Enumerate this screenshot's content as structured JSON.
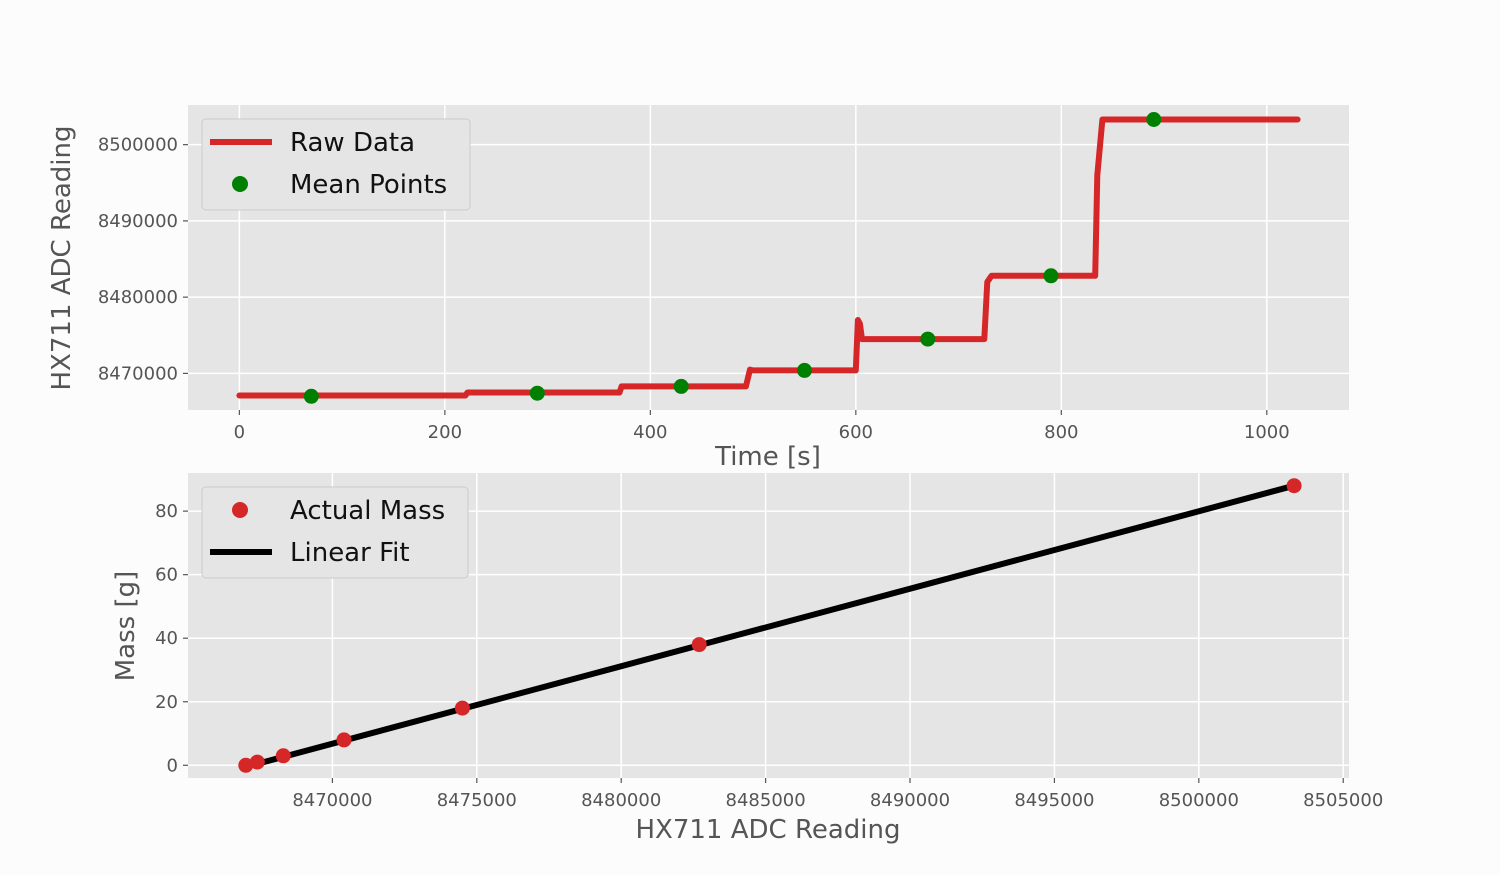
{
  "colors": {
    "figure_bg": "#fcfcfc",
    "axes_bg": "#e5e5e5",
    "grid": "#ffffff",
    "raw_data": "#d62728",
    "mean_points": "#008000",
    "actual_mass": "#d62728",
    "linear_fit": "#000000",
    "tick_text": "#555555"
  },
  "chart_data": [
    {
      "type": "line",
      "title": "",
      "xlabel": "Time [s]",
      "ylabel": "HX711 ADC Reading",
      "xlim": [
        -50,
        1080
      ],
      "ylim": [
        8465200,
        8505200
      ],
      "xticks": [
        0,
        200,
        400,
        600,
        800,
        1000
      ],
      "yticks": [
        8470000,
        8480000,
        8490000,
        8500000
      ],
      "grid": true,
      "legend": {
        "placement": "upper-left",
        "entries": [
          "Raw Data",
          "Mean Points"
        ]
      },
      "series": [
        {
          "name": "Raw Data",
          "style": "line",
          "x": [
            0,
            220,
            222,
            370,
            372,
            493,
            497,
            500,
            600,
            602,
            604,
            606,
            608,
            725,
            728,
            732,
            833,
            835,
            840,
            1030
          ],
          "y": [
            8467100,
            8467100,
            8467500,
            8467500,
            8468300,
            8468300,
            8470500,
            8470400,
            8470400,
            8477000,
            8476500,
            8474500,
            8474500,
            8474500,
            8482000,
            8482800,
            8482800,
            8496000,
            8503300,
            8503300
          ]
        },
        {
          "name": "Mean Points",
          "style": "markers",
          "x": [
            70,
            290,
            430,
            550,
            670,
            790,
            890
          ],
          "y": [
            8467000,
            8467400,
            8468300,
            8470400,
            8474500,
            8482800,
            8503300
          ]
        }
      ]
    },
    {
      "type": "scatter",
      "title": "",
      "xlabel": "HX711 ADC Reading",
      "ylabel": "Mass [g]",
      "xlim": [
        8465000,
        8505200
      ],
      "ylim": [
        -4,
        92
      ],
      "xticks": [
        8470000,
        8475000,
        8480000,
        8485000,
        8490000,
        8495000,
        8500000,
        8505000
      ],
      "yticks": [
        0,
        20,
        40,
        60,
        80
      ],
      "grid": true,
      "legend": {
        "placement": "upper-left",
        "entries": [
          "Actual Mass",
          "Linear Fit"
        ]
      },
      "series": [
        {
          "name": "Actual Mass",
          "style": "markers",
          "x": [
            8467000,
            8467400,
            8468300,
            8470400,
            8474500,
            8482700,
            8503300
          ],
          "y": [
            0,
            1,
            3,
            8,
            18,
            38,
            88
          ]
        },
        {
          "name": "Linear Fit",
          "style": "line",
          "x": [
            8467000,
            8503300
          ],
          "y": [
            -0.5,
            88
          ]
        }
      ]
    }
  ]
}
